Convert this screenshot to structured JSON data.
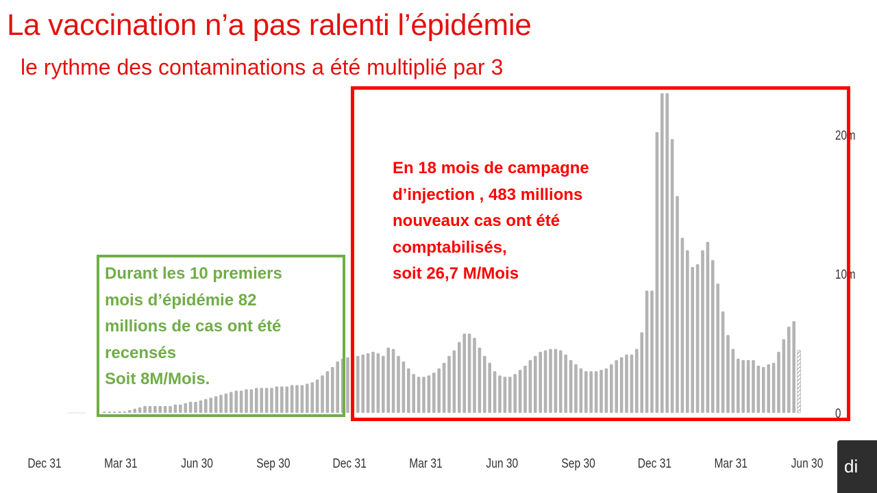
{
  "slide": {
    "title": "La vaccination n’a pas ralenti l’épidémie",
    "subtitle": "le rythme des contaminations a été multiplié par 3"
  },
  "annotations": {
    "green_lines": [
      "Durant les 10 premiers",
      "mois d’épidémie 82",
      "millions de cas ont été",
      "recensés",
      "Soit 8M/Mois."
    ],
    "red_lines": [
      "En 18 mois de campagne",
      "d’injection , 483 millions",
      "nouveaux cas  ont été",
      "comptabilisés,",
      "soit 26,7 M/Mois"
    ],
    "green_color": "#70ad47",
    "red_color": "#ff0000"
  },
  "corner_button": {
    "label": "di"
  },
  "chart_data": {
    "type": "bar",
    "title": "",
    "xlabel": "",
    "ylabel": "",
    "x_tick_labels": [
      "Dec 31",
      "Mar 31",
      "Jun 30",
      "Sep 30",
      "Dec 31",
      "Mar 31",
      "Jun 30",
      "Sep 30",
      "Dec 31",
      "Mar 31",
      "Jun 30"
    ],
    "y_tick_labels": [
      "0",
      "10m",
      "20m"
    ],
    "ylim": [
      0,
      23
    ],
    "bar_color": "#b3b3b3",
    "series": [
      {
        "values": [
          0.1,
          0.1,
          0.1,
          0.1,
          0.1,
          0.2,
          0.3,
          0.4,
          0.5,
          0.5,
          0.5,
          0.5,
          0.5,
          0.5,
          0.6,
          0.6,
          0.7,
          0.8,
          0.8,
          0.9,
          1.0,
          1.1,
          1.2,
          1.3,
          1.4,
          1.5,
          1.6,
          1.6,
          1.7,
          1.7,
          1.8,
          1.8,
          1.8,
          1.8,
          1.9,
          1.9,
          1.9,
          2.0,
          2.0,
          2.0,
          2.1,
          2.2,
          2.4,
          2.7,
          3.0,
          3.3,
          3.7,
          3.9,
          4.0,
          4.1,
          4.1,
          4.2,
          4.3,
          4.4,
          4.3,
          4.1,
          4.7,
          4.6,
          4.1,
          3.7,
          3.2,
          2.8,
          2.6,
          2.6,
          2.7,
          2.9,
          3.2,
          3.6,
          4.1,
          4.5,
          5.1,
          5.7,
          5.7,
          5.4,
          4.7,
          4.1,
          3.6,
          3.0,
          2.7,
          2.6,
          2.6,
          2.8,
          3.1,
          3.4,
          3.8,
          4.1,
          4.4,
          4.5,
          4.6,
          4.6,
          4.5,
          4.2,
          3.8,
          3.5,
          3.2,
          3.0,
          3.0,
          3.0,
          3.1,
          3.2,
          3.5,
          3.8,
          4.0,
          4.2,
          4.2,
          4.6,
          5.8,
          8.8,
          8.8,
          20.2,
          23.0,
          23.0,
          19.7,
          15.6,
          12.6,
          11.7,
          10.5,
          10.7,
          11.7,
          12.3,
          11.0,
          9.3,
          7.3,
          5.6,
          4.6,
          3.9,
          3.8,
          3.8,
          3.8,
          3.4,
          3.3,
          3.5,
          3.6,
          4.4,
          5.3,
          6.2,
          6.6,
          4.5
        ]
      }
    ]
  }
}
